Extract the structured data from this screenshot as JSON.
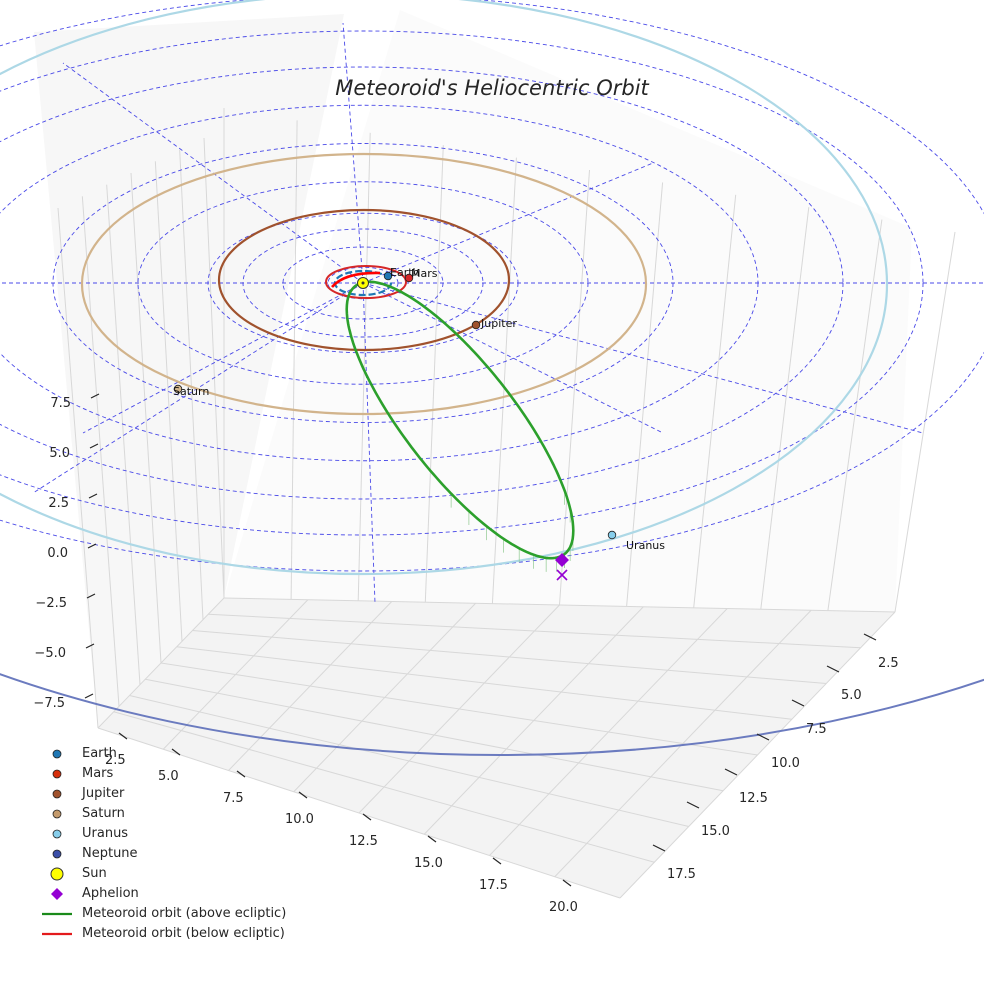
{
  "chart_data": {
    "type": "3d-orbit",
    "title": "Meteoroid's Heliocentric Orbit",
    "axes": {
      "x_ticks": [
        "2.5",
        "5.0",
        "7.5",
        "10.0",
        "12.5",
        "15.0",
        "17.5",
        "20.0"
      ],
      "y_ticks": [
        "2.5",
        "5.0",
        "7.5",
        "10.0",
        "12.5",
        "15.0",
        "17.5"
      ],
      "z_ticks": [
        "7.5",
        "5.0",
        "2.5",
        "0.0",
        "−2.5",
        "−5.0",
        "−7.5"
      ],
      "grid": true,
      "reference_grid": "polar ecliptic grid (dashed blue rings and radial lines)"
    },
    "planets": [
      {
        "name": "Earth",
        "label": "Earth",
        "orbit_radius_au": 1.0,
        "color": "#1f77b4"
      },
      {
        "name": "Mars",
        "label": "Mars",
        "orbit_radius_au": 1.52,
        "color": "#d62728"
      },
      {
        "name": "Jupiter",
        "label": "Jupiter",
        "orbit_radius_au": 5.2,
        "color": "#a0522d"
      },
      {
        "name": "Saturn",
        "label": "Saturn",
        "orbit_radius_au": 9.58,
        "color": "#d2b48c"
      },
      {
        "name": "Uranus",
        "label": "Uranus",
        "orbit_radius_au": 19.2,
        "color": "#87ceeb"
      },
      {
        "name": "Neptune",
        "label": "",
        "orbit_radius_au": 30.1,
        "color": "#3b4fa8"
      }
    ],
    "sun": {
      "name": "Sun",
      "color": "#ffff00"
    },
    "meteoroid_orbit": {
      "above_label": "Meteoroid orbit (above ecliptic)",
      "below_label": "Meteoroid orbit (below ecliptic)",
      "above_color": "#2ca02c",
      "below_color": "#ff0000",
      "aphelion_label": "Aphelion",
      "aphelion_color": "#9400d3"
    },
    "legend": {
      "placement": "bottom-left",
      "entries": [
        {
          "label": "Earth",
          "symbol": "dot",
          "color": "#1f77b4"
        },
        {
          "label": "Mars",
          "symbol": "dot",
          "color": "#d62f0c"
        },
        {
          "label": "Jupiter",
          "symbol": "dot",
          "color": "#a0522d"
        },
        {
          "label": "Saturn",
          "symbol": "dot",
          "color": "#c49a6c"
        },
        {
          "label": "Uranus",
          "symbol": "dot",
          "color": "#87ceeb"
        },
        {
          "label": "Neptune",
          "symbol": "dot",
          "color": "#3b4fa8"
        },
        {
          "label": "Sun",
          "symbol": "sun",
          "color": "#ffff00"
        },
        {
          "label": "Aphelion",
          "symbol": "diamond",
          "color": "#9400d3"
        },
        {
          "label": "Meteoroid orbit (above ecliptic)",
          "symbol": "line",
          "color": "#1a8a1a"
        },
        {
          "label": "Meteoroid orbit (below ecliptic)",
          "symbol": "line",
          "color": "#e31a1c"
        }
      ]
    }
  }
}
